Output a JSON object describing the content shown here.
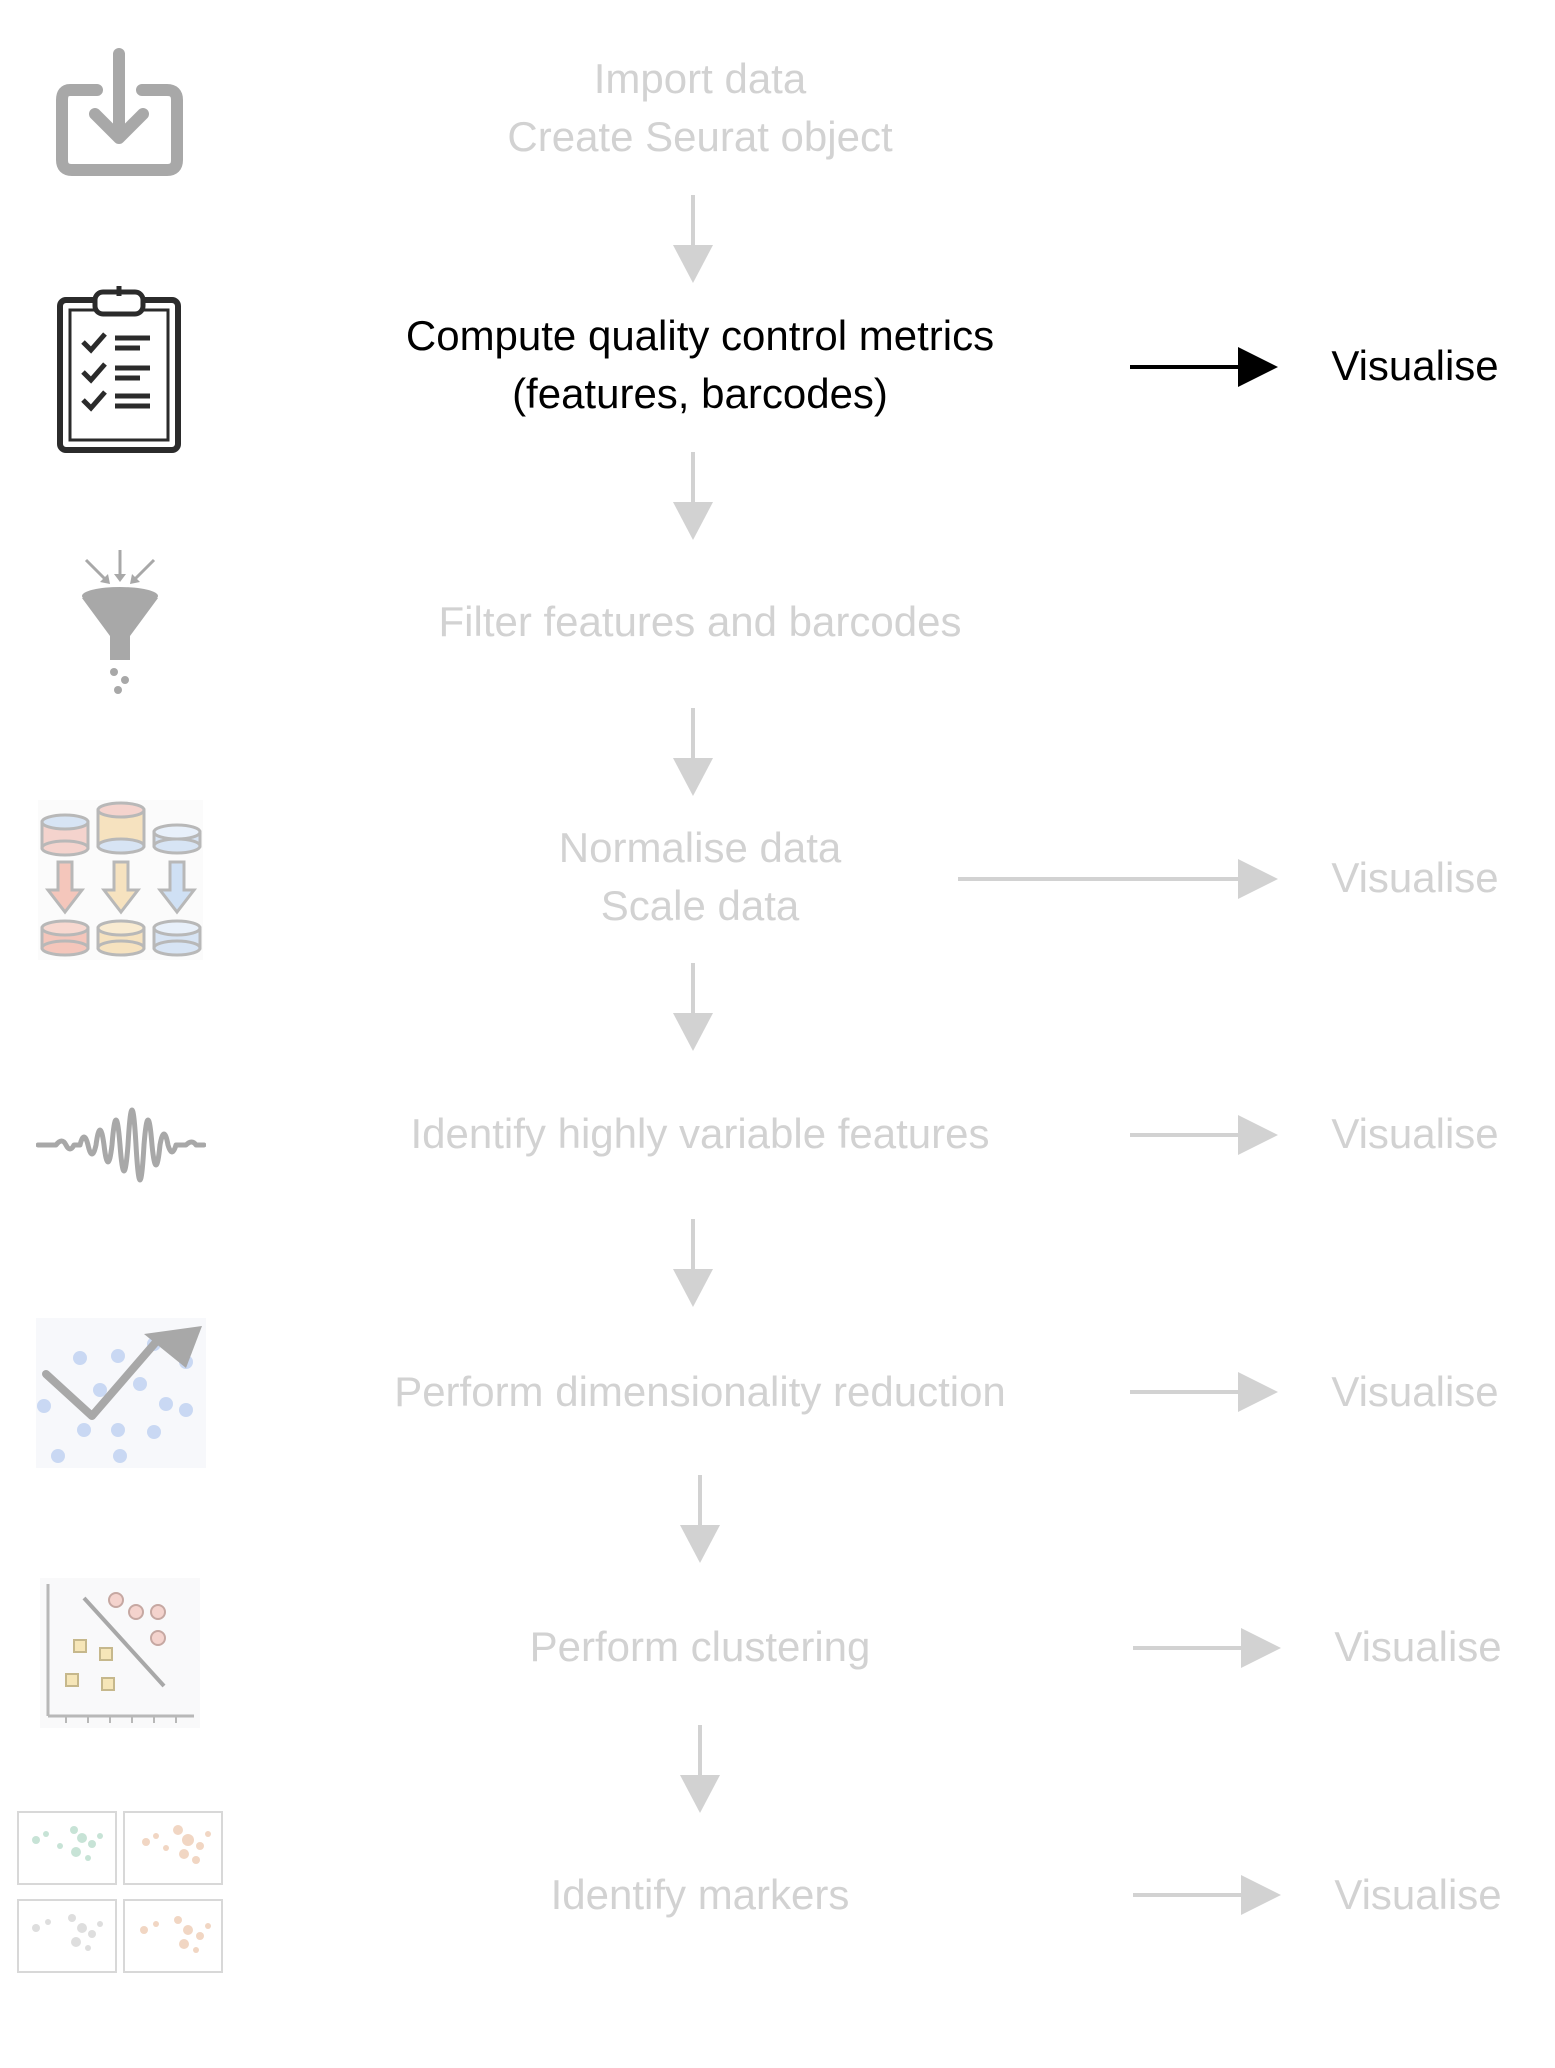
{
  "steps": [
    {
      "lines": [
        "Import data",
        "Create Seurat object"
      ],
      "icon": "import-icon",
      "active": false
    },
    {
      "lines": [
        "Compute quality control metrics",
        "(features, barcodes)"
      ],
      "icon": "clipboard-checklist-icon",
      "active": true,
      "visualise": "Visualise"
    },
    {
      "lines": [
        "Filter features and barcodes"
      ],
      "icon": "funnel-icon",
      "active": false
    },
    {
      "lines": [
        "Normalise data",
        "Scale data"
      ],
      "icon": "normalise-databases-icon",
      "active": false,
      "visualise": "Visualise"
    },
    {
      "lines": [
        "Identify highly variable features"
      ],
      "icon": "waveform-icon",
      "active": false,
      "visualise": "Visualise"
    },
    {
      "lines": [
        "Perform dimensionality reduction"
      ],
      "icon": "trend-scatter-icon",
      "active": false,
      "visualise": "Visualise"
    },
    {
      "lines": [
        "Perform clustering"
      ],
      "icon": "cluster-plot-icon",
      "active": false,
      "visualise": "Visualise"
    },
    {
      "lines": [
        "Identify markers"
      ],
      "icon": "marker-umap-panels-icon",
      "active": false,
      "visualise": "Visualise"
    }
  ],
  "colors": {
    "active": "#000000",
    "inactive": "#d2d2d2",
    "icon_gray": "#a8a8a8"
  }
}
